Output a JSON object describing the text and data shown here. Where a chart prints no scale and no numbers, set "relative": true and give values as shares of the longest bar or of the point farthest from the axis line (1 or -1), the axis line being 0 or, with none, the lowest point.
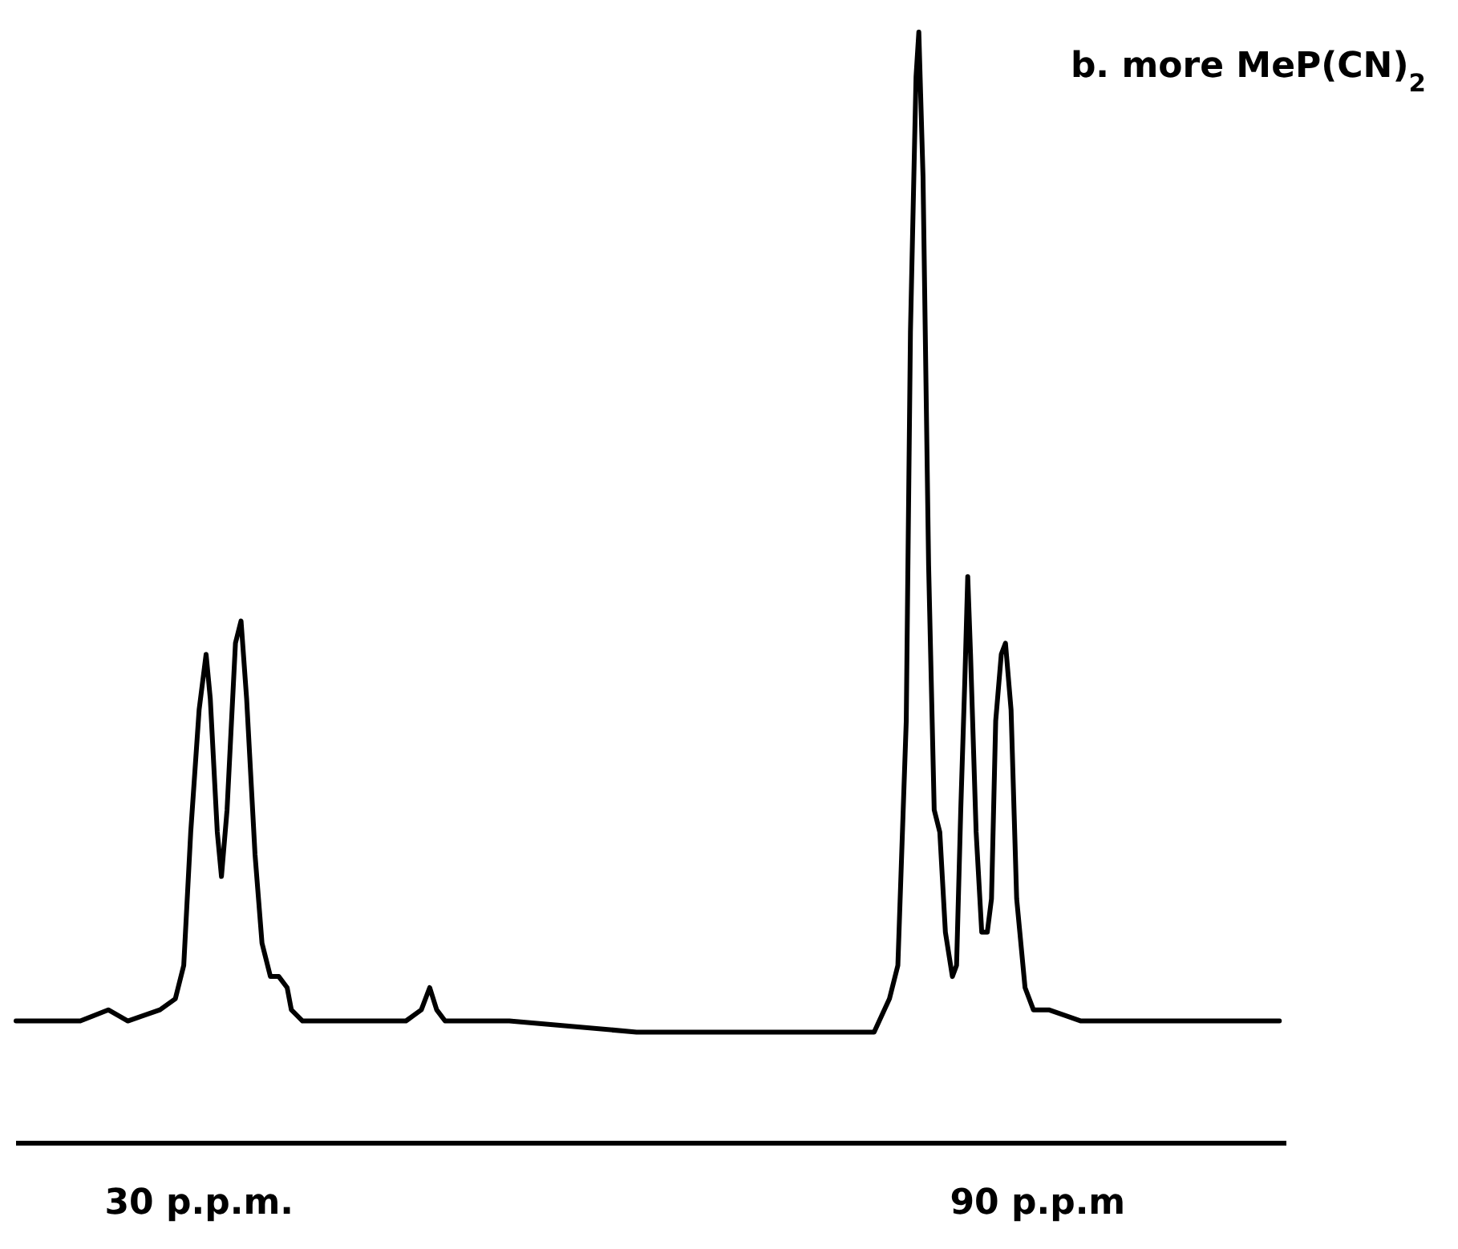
{
  "chart_data": {
    "type": "line",
    "title": "b. more MeP(CN)$_{2}$",
    "relative": true,
    "xlim": [
      16.9,
      107.8
    ],
    "xticks": [
      {
        "value": 30,
        "label": "30 p.p.m."
      },
      {
        "value": 90,
        "label": "90 p.p.m"
      }
    ],
    "grid": false,
    "marker": "none",
    "line_style": "solid",
    "series": [
      {
        "color": "#000000",
        "x": [
          16.9,
          19.2,
          21.5,
          23.5,
          24.9,
          27.2,
          28.3,
          28.9,
          29.4,
          30.0,
          30.5,
          30.8,
          31.3,
          31.6,
          32.0,
          32.6,
          33.0,
          33.4,
          34.0,
          34.5,
          35.1,
          35.7,
          36.3,
          36.6,
          37.4,
          40.8,
          43.1,
          44.8,
          45.9,
          46.5,
          47.0,
          47.6,
          52.2,
          61.3,
          72.6,
          78.3,
          79.4,
          80.0,
          80.6,
          80.9,
          81.3,
          81.5,
          81.8,
          82.2,
          82.6,
          83.0,
          83.4,
          83.9,
          84.2,
          84.5,
          84.8,
          85.0,
          85.2,
          85.6,
          86.0,
          86.4,
          86.7,
          87.0,
          87.4,
          87.7,
          88.1,
          88.5,
          89.1,
          89.7,
          90.8,
          93.1,
          97.6,
          102.2,
          107.3
        ],
        "values": [
          0.11,
          0.11,
          0.11,
          0.12,
          0.11,
          0.12,
          0.13,
          0.16,
          0.28,
          0.39,
          0.44,
          0.4,
          0.28,
          0.24,
          0.3,
          0.45,
          0.47,
          0.4,
          0.26,
          0.18,
          0.15,
          0.15,
          0.14,
          0.12,
          0.11,
          0.11,
          0.11,
          0.11,
          0.12,
          0.14,
          0.12,
          0.11,
          0.11,
          0.1,
          0.1,
          0.1,
          0.13,
          0.16,
          0.38,
          0.73,
          0.96,
          1.0,
          0.87,
          0.52,
          0.3,
          0.28,
          0.19,
          0.15,
          0.16,
          0.3,
          0.42,
          0.51,
          0.44,
          0.28,
          0.19,
          0.19,
          0.22,
          0.38,
          0.44,
          0.45,
          0.39,
          0.22,
          0.14,
          0.12,
          0.12,
          0.11,
          0.11,
          0.11,
          0.11
        ]
      }
    ]
  }
}
